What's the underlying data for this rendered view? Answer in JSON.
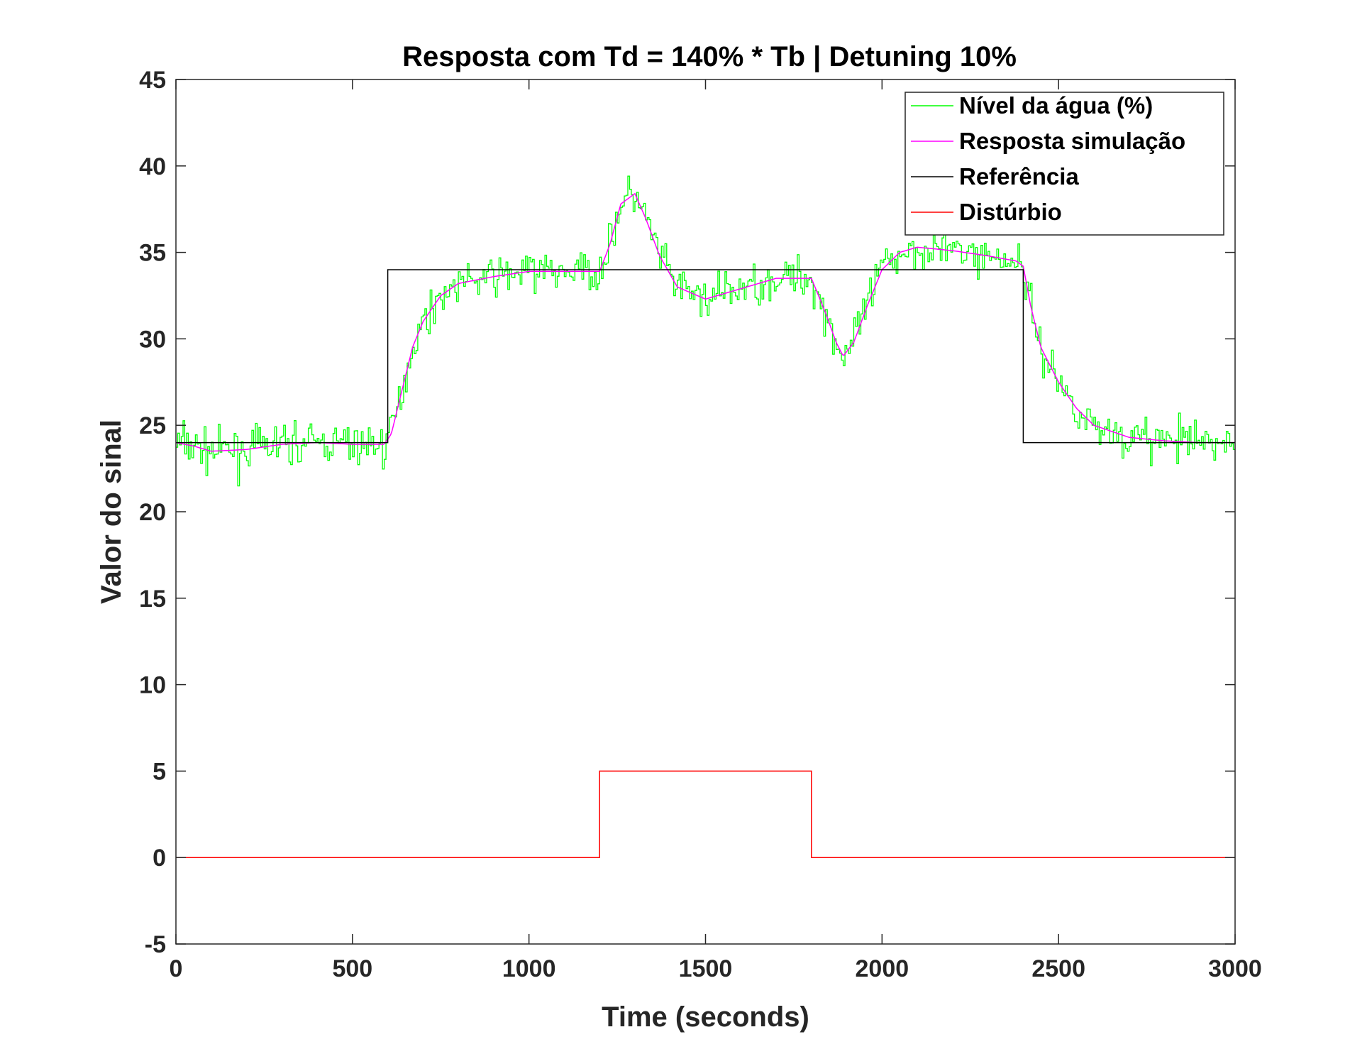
{
  "chart_data": {
    "type": "line",
    "title": "Resposta com Td = 140% * Tb | Detuning 10%",
    "xlabel": "Time (seconds)",
    "ylabel": "Valor do sinal",
    "xlim": [
      0,
      3000
    ],
    "ylim": [
      -5,
      45
    ],
    "xticks": [
      0,
      500,
      1000,
      1500,
      2000,
      2500,
      3000
    ],
    "yticks": [
      -5,
      0,
      5,
      10,
      15,
      20,
      25,
      30,
      35,
      40,
      45
    ],
    "grid": false,
    "legend_position": "top-right",
    "series": [
      {
        "name": "Nível da água (%)",
        "color": "#00ff00",
        "style": "noisy-step",
        "noise_amplitude": 1.8,
        "x": [
          0,
          50,
          100,
          200,
          300,
          400,
          500,
          590,
          610,
          640,
          670,
          700,
          750,
          800,
          900,
          1000,
          1100,
          1200,
          1230,
          1260,
          1300,
          1330,
          1370,
          1420,
          1500,
          1600,
          1700,
          1800,
          1840,
          1870,
          1890,
          1920,
          1960,
          2000,
          2050,
          2100,
          2200,
          2300,
          2380,
          2400,
          2420,
          2450,
          2500,
          2550,
          2600,
          2700,
          2800,
          2900,
          3000
        ],
        "y": [
          24.0,
          23.8,
          23.5,
          23.6,
          23.9,
          24.0,
          23.9,
          23.9,
          24.5,
          27.0,
          29.5,
          31.0,
          32.5,
          33.2,
          33.6,
          33.9,
          33.9,
          33.9,
          35.5,
          37.8,
          38.4,
          37.0,
          34.8,
          33.0,
          32.3,
          32.9,
          33.5,
          33.5,
          31.5,
          29.8,
          29.0,
          29.8,
          32.0,
          34.0,
          35.0,
          35.3,
          35.1,
          34.8,
          34.5,
          34.2,
          32.0,
          29.5,
          27.5,
          26.0,
          25.0,
          24.3,
          24.1,
          24.0,
          24.0
        ]
      },
      {
        "name": "Resposta simulação",
        "color": "#ff00ff",
        "style": "smooth",
        "x": [
          0,
          50,
          100,
          200,
          300,
          400,
          500,
          590,
          610,
          640,
          670,
          700,
          750,
          800,
          900,
          1000,
          1100,
          1200,
          1230,
          1260,
          1300,
          1330,
          1370,
          1420,
          1500,
          1600,
          1700,
          1800,
          1840,
          1870,
          1890,
          1920,
          1960,
          2000,
          2050,
          2100,
          2200,
          2300,
          2380,
          2400,
          2420,
          2450,
          2500,
          2550,
          2600,
          2700,
          2800,
          2900,
          3000
        ],
        "y": [
          24.0,
          23.8,
          23.5,
          23.6,
          23.9,
          24.0,
          23.9,
          23.9,
          24.5,
          27.0,
          29.5,
          31.0,
          32.5,
          33.2,
          33.6,
          33.9,
          33.9,
          33.9,
          35.5,
          37.8,
          38.4,
          37.0,
          34.8,
          33.0,
          32.3,
          32.9,
          33.5,
          33.5,
          31.5,
          29.8,
          29.0,
          29.8,
          32.0,
          34.0,
          35.0,
          35.3,
          35.1,
          34.8,
          34.5,
          34.2,
          32.0,
          29.5,
          27.5,
          26.0,
          25.0,
          24.3,
          24.1,
          24.0,
          24.0
        ]
      },
      {
        "name": "Referência",
        "color": "#000000",
        "style": "step",
        "x": [
          0,
          600,
          600,
          2400,
          2400,
          3000
        ],
        "y": [
          24,
          24,
          34,
          34,
          24,
          24
        ]
      },
      {
        "name": "Distúrbio",
        "color": "#ff0000",
        "style": "step",
        "x": [
          0,
          1200,
          1200,
          1800,
          1800,
          3000
        ],
        "y": [
          0,
          0,
          5,
          5,
          0,
          0
        ]
      }
    ]
  }
}
